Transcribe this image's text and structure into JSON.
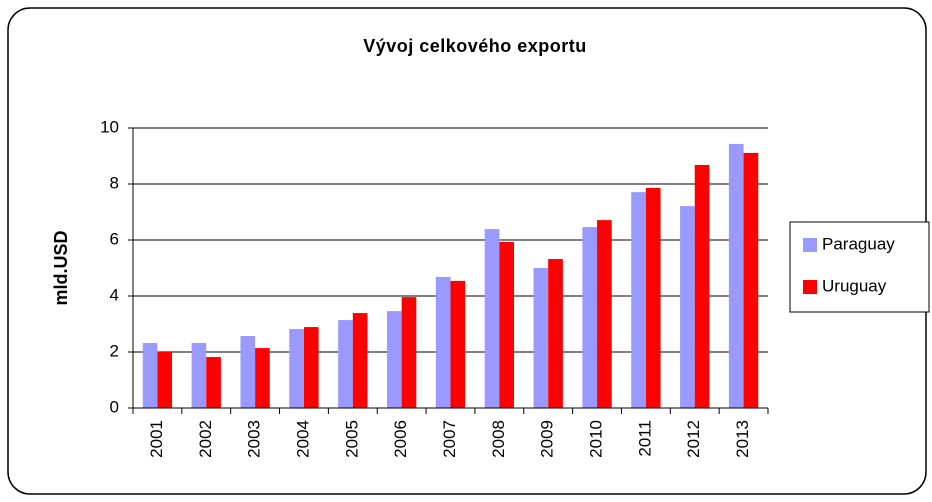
{
  "chart_data": {
    "type": "bar",
    "title": "Vývoj celkového exportu",
    "y_label": "mld.USD",
    "categories": [
      "2001",
      "2002",
      "2003",
      "2004",
      "2005",
      "2006",
      "2007",
      "2008",
      "2009",
      "2010",
      "2011",
      "2012",
      "2013"
    ],
    "series": [
      {
        "name": "Paraguay",
        "color": "#9999ff",
        "values": [
          2.32,
          2.32,
          2.57,
          2.82,
          3.14,
          3.46,
          4.68,
          6.39,
          5.0,
          6.46,
          7.71,
          7.21,
          9.43
        ]
      },
      {
        "name": "Uruguay",
        "color": "#ff0000",
        "values": [
          2.0,
          1.82,
          2.14,
          2.89,
          3.39,
          3.96,
          4.54,
          5.93,
          5.32,
          6.71,
          7.86,
          8.68,
          9.11
        ]
      }
    ],
    "ylim": [
      0,
      10
    ],
    "yticks": [
      0,
      2,
      4,
      6,
      8,
      10
    ],
    "grid": true,
    "legend": "right"
  }
}
